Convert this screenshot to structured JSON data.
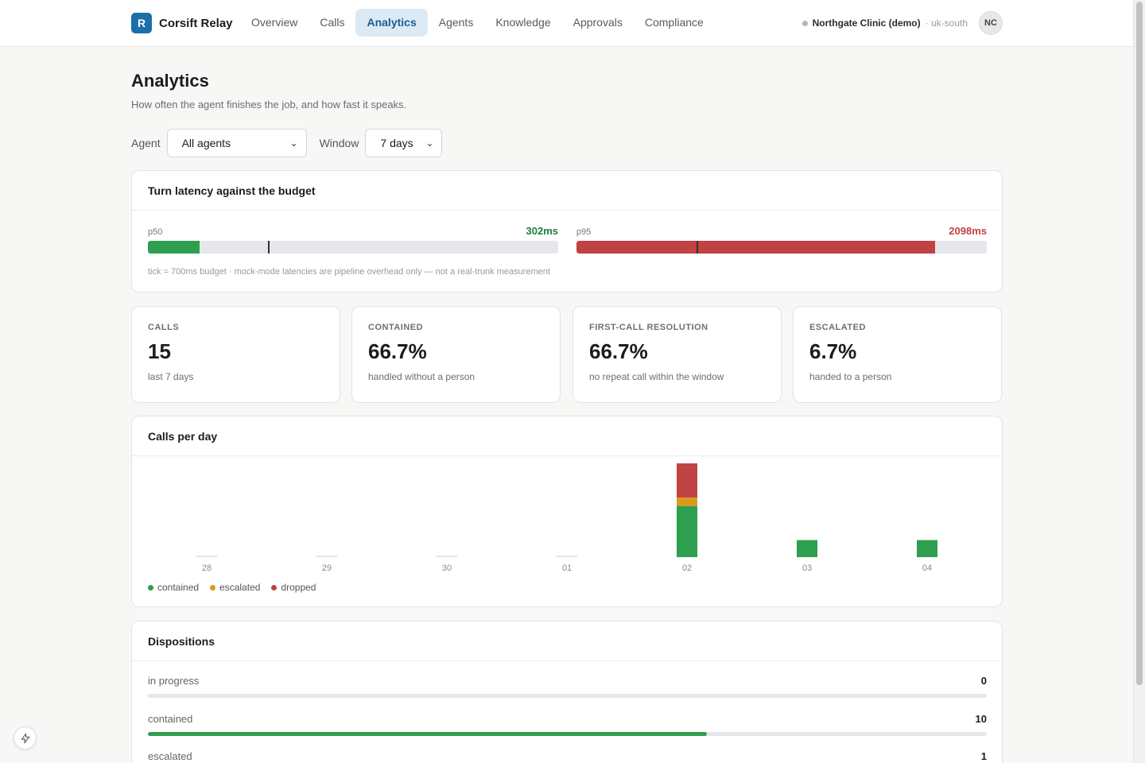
{
  "app": {
    "logo_letter": "R",
    "name": "Corsift Relay"
  },
  "nav": [
    {
      "label": "Overview",
      "active": false
    },
    {
      "label": "Calls",
      "active": false
    },
    {
      "label": "Analytics",
      "active": true
    },
    {
      "label": "Agents",
      "active": false
    },
    {
      "label": "Knowledge",
      "active": false
    },
    {
      "label": "Approvals",
      "active": false
    },
    {
      "label": "Compliance",
      "active": false
    }
  ],
  "tenant": {
    "name": "Northgate Clinic (demo)",
    "region": "· uk-south",
    "avatar_initials": "NC"
  },
  "page": {
    "title": "Analytics",
    "subtitle": "How often the agent finishes the job, and how fast it speaks."
  },
  "filters": {
    "agent_label": "Agent",
    "agent_value": "All agents",
    "window_label": "Window",
    "window_value": "7 days"
  },
  "latency": {
    "title": "Turn latency against the budget",
    "budget_ms": 700,
    "scale_max_ms": 2400,
    "p50": {
      "label": "p50",
      "value_text": "302ms",
      "value_ms": 302,
      "color": "#2e9e4f"
    },
    "p95": {
      "label": "p95",
      "value_text": "2098ms",
      "value_ms": 2098,
      "color": "#c04242"
    },
    "value_colors": {
      "p50": "#1e7b3b",
      "p95": "#c04242"
    },
    "note": "tick = 700ms budget · mock-mode latencies are pipeline overhead only — not a real-trunk measurement"
  },
  "stats": [
    {
      "label": "CALLS",
      "value": "15",
      "sub": "last 7 days"
    },
    {
      "label": "CONTAINED",
      "value": "66.7%",
      "sub": "handled without a person"
    },
    {
      "label": "FIRST-CALL RESOLUTION",
      "value": "66.7%",
      "sub": "no repeat call within the window"
    },
    {
      "label": "ESCALATED",
      "value": "6.7%",
      "sub": "handed to a person"
    }
  ],
  "chart_data": {
    "type": "bar",
    "title": "Calls per day",
    "categories": [
      "28",
      "29",
      "30",
      "01",
      "02",
      "03",
      "04"
    ],
    "series": [
      {
        "name": "contained",
        "values": [
          0,
          0,
          0,
          0,
          6,
          2,
          2
        ],
        "color": "#2e9e4f"
      },
      {
        "name": "escalated",
        "values": [
          0,
          0,
          0,
          0,
          1,
          0,
          0
        ],
        "color": "#d99a1e"
      },
      {
        "name": "dropped",
        "values": [
          0,
          0,
          0,
          0,
          4,
          0,
          0
        ],
        "color": "#c04242"
      }
    ],
    "stacked": true,
    "ylim": [
      0,
      11
    ],
    "grid": false,
    "legend": "bottom-left"
  },
  "dispositions": {
    "title": "Dispositions",
    "total": 15,
    "items": [
      {
        "label": "in progress",
        "count": "0",
        "value": 0,
        "color": "#2e9e4f"
      },
      {
        "label": "contained",
        "count": "10",
        "value": 10,
        "color": "#2e9e4f"
      },
      {
        "label": "escalated",
        "count": "1",
        "value": 1,
        "color": "#d99a1e"
      }
    ]
  }
}
